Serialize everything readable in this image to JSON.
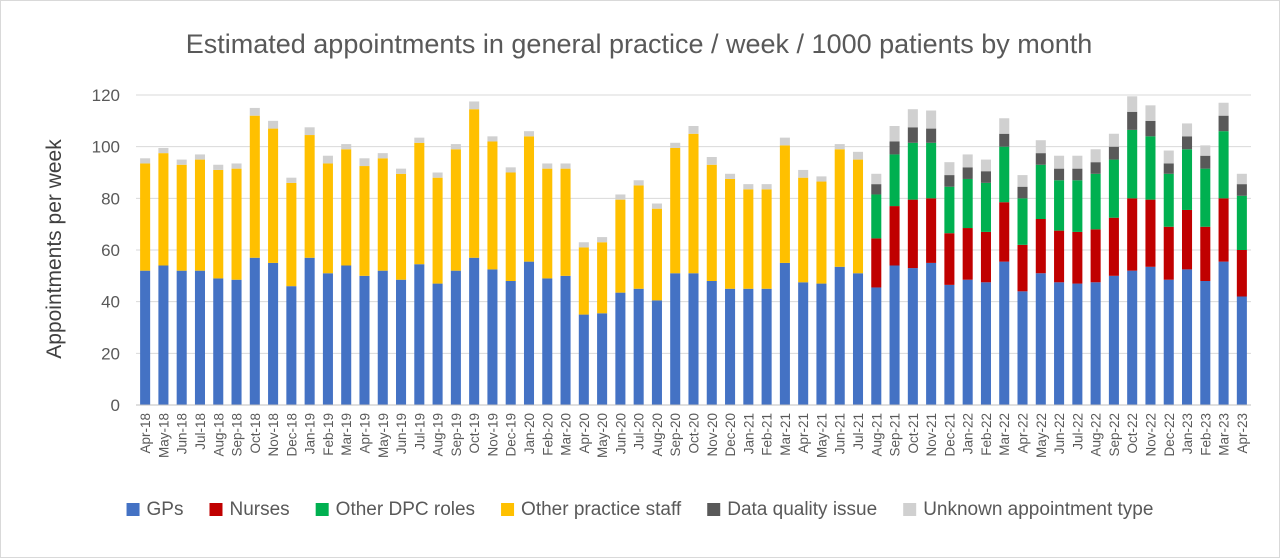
{
  "chart_data": {
    "type": "bar",
    "stacked": true,
    "title": "Estimated appointments in general practice / week / 1000 patients by month",
    "xlabel": "",
    "ylabel": "Appointments per week",
    "ylim": [
      0,
      120
    ],
    "yticks": [
      0,
      20,
      40,
      60,
      80,
      100,
      120
    ],
    "grid": true,
    "legend_position": "bottom",
    "categories": [
      "Apr-18",
      "May-18",
      "Jun-18",
      "Jul-18",
      "Aug-18",
      "Sep-18",
      "Oct-18",
      "Nov-18",
      "Dec-18",
      "Jan-19",
      "Feb-19",
      "Mar-19",
      "Apr-19",
      "May-19",
      "Jun-19",
      "Jul-19",
      "Aug-19",
      "Sep-19",
      "Oct-19",
      "Nov-19",
      "Dec-19",
      "Jan-20",
      "Feb-20",
      "Mar-20",
      "Apr-20",
      "May-20",
      "Jun-20",
      "Jul-20",
      "Aug-20",
      "Sep-20",
      "Oct-20",
      "Nov-20",
      "Dec-20",
      "Jan-21",
      "Feb-21",
      "Mar-21",
      "Apr-21",
      "May-21",
      "Jun-21",
      "Jul-21",
      "Aug-21",
      "Sep-21",
      "Oct-21",
      "Nov-21",
      "Dec-21",
      "Jan-22",
      "Feb-22",
      "Mar-22",
      "Apr-22",
      "May-22",
      "Jun-22",
      "Jul-22",
      "Aug-22",
      "Sep-22",
      "Oct-22",
      "Nov-22",
      "Dec-22",
      "Jan-23",
      "Feb-23",
      "Mar-23",
      "Apr-23"
    ],
    "series": [
      {
        "name": "GPs",
        "color": "#4472c4",
        "values": [
          52,
          54,
          52,
          52,
          49,
          48.5,
          57,
          55,
          46,
          57,
          51,
          54,
          50,
          52,
          48.5,
          54.5,
          47,
          52,
          57,
          52.5,
          48,
          55.5,
          49,
          50,
          35,
          35.5,
          43.5,
          45,
          40.5,
          51,
          51,
          48,
          45,
          45,
          45,
          55,
          47.5,
          47,
          53.5,
          51,
          45.5,
          54,
          53,
          55,
          46.5,
          48.5,
          47.5,
          55.5,
          44,
          51,
          47.5,
          47,
          47.5,
          50,
          52,
          53.5,
          48.5,
          52.5,
          48,
          55.5,
          42
        ]
      },
      {
        "name": "Nurses",
        "color": "#c00000",
        "values": [
          0,
          0,
          0,
          0,
          0,
          0,
          0,
          0,
          0,
          0,
          0,
          0,
          0,
          0,
          0,
          0,
          0,
          0,
          0,
          0,
          0,
          0,
          0,
          0,
          0,
          0,
          0,
          0,
          0,
          0,
          0,
          0,
          0,
          0,
          0,
          0,
          0,
          0,
          0,
          0,
          19,
          23,
          26.5,
          25,
          20,
          20,
          19.5,
          23,
          18,
          21,
          20,
          20,
          20.5,
          22.5,
          28,
          26,
          20.5,
          23,
          21,
          24.5,
          18
        ]
      },
      {
        "name": "Other DPC roles",
        "color": "#00b050",
        "values": [
          0,
          0,
          0,
          0,
          0,
          0,
          0,
          0,
          0,
          0,
          0,
          0,
          0,
          0,
          0,
          0,
          0,
          0,
          0,
          0,
          0,
          0,
          0,
          0,
          0,
          0,
          0,
          0,
          0,
          0,
          0,
          0,
          0,
          0,
          0,
          0,
          0,
          0,
          0,
          0,
          17,
          20,
          22,
          21.5,
          18,
          19,
          19,
          21.5,
          18,
          21,
          19.5,
          20,
          21.5,
          22.5,
          26.5,
          24.5,
          20.5,
          23.5,
          22.5,
          26,
          21
        ]
      },
      {
        "name": "Other practice staff",
        "color": "#ffc000",
        "values": [
          41.5,
          43.5,
          41,
          43,
          42,
          43,
          55,
          52,
          40,
          47.5,
          42.5,
          45,
          42.5,
          43.5,
          41,
          47,
          41,
          47,
          57.5,
          49.5,
          42,
          48.5,
          42.5,
          41.5,
          26,
          27.5,
          36,
          40,
          35.5,
          48.5,
          54,
          45,
          42.5,
          38.5,
          38.5,
          45.5,
          40.5,
          39.5,
          45.5,
          44,
          0,
          0,
          0,
          0,
          0,
          0,
          0,
          0,
          0,
          0,
          0,
          0,
          0,
          0,
          0,
          0,
          0,
          0,
          0,
          0,
          0
        ]
      },
      {
        "name": "Data quality issue",
        "color": "#595959",
        "values": [
          0,
          0,
          0,
          0,
          0,
          0,
          0,
          0,
          0,
          0,
          0,
          0,
          0,
          0,
          0,
          0,
          0,
          0,
          0,
          0,
          0,
          0,
          0,
          0,
          0,
          0,
          0,
          0,
          0,
          0,
          0,
          0,
          0,
          0,
          0,
          0,
          0,
          0,
          0,
          0,
          4,
          5,
          6,
          5.5,
          4.5,
          4.5,
          4.5,
          5,
          4.5,
          4.5,
          4.5,
          4.5,
          4.5,
          5,
          7,
          6,
          4,
          5,
          5,
          6,
          4.5
        ]
      },
      {
        "name": "Unknown appointment type",
        "color": "#d0d0d0",
        "values": [
          2,
          2,
          2,
          2,
          2,
          2,
          3,
          3,
          2,
          3,
          3,
          2,
          3,
          2,
          2,
          2,
          2,
          2,
          3,
          2,
          2,
          2,
          2,
          2,
          2,
          2,
          2,
          2,
          2,
          2,
          3,
          3,
          2,
          2,
          2,
          3,
          3,
          2,
          2,
          3,
          4,
          6,
          7,
          7,
          5,
          5,
          4.5,
          6,
          4.5,
          5,
          5,
          5,
          5,
          5,
          6,
          6,
          5,
          5,
          4,
          5,
          4
        ]
      }
    ]
  }
}
